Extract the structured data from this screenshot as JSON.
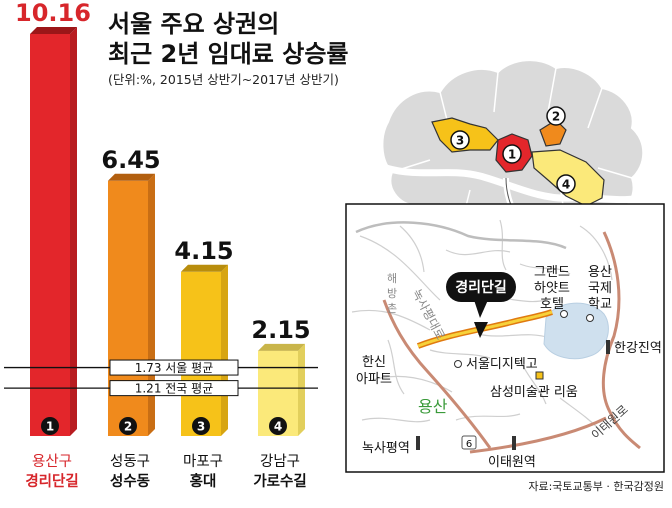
{
  "title_line1": "서울 주요 상권의",
  "title_line2": "최근 2년 임대료 상승률",
  "subtitle": "(단위:%, 2015년 상반기~2017년 상반기)",
  "source": "자료:국토교통부 · 한국감정원",
  "chart_data": {
    "type": "bar",
    "categories": [
      "용산구 경리단길",
      "성동구 성수동",
      "마포구 홍대",
      "강남구 가로수길"
    ],
    "values": [
      10.16,
      6.45,
      4.15,
      2.15
    ],
    "unit": "%",
    "ylim": [
      0,
      11
    ],
    "reference_lines": [
      {
        "label": "1.73 서울 평균",
        "value": 1.73
      },
      {
        "label": "1.21 전국 평균",
        "value": 1.21
      }
    ],
    "bars": [
      {
        "num": "1",
        "label": "10.16",
        "district": "용산구",
        "area": "경리단길",
        "front": "#e3262b",
        "top": "#9c1618",
        "side": "#b81c20",
        "label_color": "#d7262b"
      },
      {
        "num": "2",
        "label": "6.45",
        "district": "성동구",
        "area": "성수동",
        "front": "#f08a1c",
        "top": "#b25f0f",
        "side": "#c96e14",
        "label_color": "#111111"
      },
      {
        "num": "3",
        "label": "4.15",
        "district": "마포구",
        "area": "홍대",
        "front": "#f6c219",
        "top": "#b88d0d",
        "side": "#d7a512",
        "label_color": "#111111"
      },
      {
        "num": "4",
        "label": "2.15",
        "district": "강남구",
        "area": "가로수길",
        "front": "#fbe97a",
        "top": "#c9b54a",
        "side": "#e2cf5c",
        "label_color": "#111111"
      }
    ]
  },
  "map": {
    "labels": {
      "gyeongridan": "경리단길",
      "grand_hyatt": "그랜드\n하얏트\n호텔",
      "yongsan_school": "용산\n국제\n학교",
      "haebangchon": "해\n방\n촌",
      "noksapyeong_daero": "녹사평대로",
      "hanshin_apt": "한신\n아파트",
      "seoul_digital_high": "서울디지텍고",
      "samsung_museum": "삼성미술관 리움",
      "yongsan": "용산",
      "hangangjin": "한강진역",
      "itaewon_ro": "이태원로",
      "noksapyeong_stn": "녹사평역",
      "itaewon_stn": "이태원역",
      "route_num": "6"
    },
    "markers": [
      "1",
      "2",
      "3",
      "4"
    ]
  }
}
